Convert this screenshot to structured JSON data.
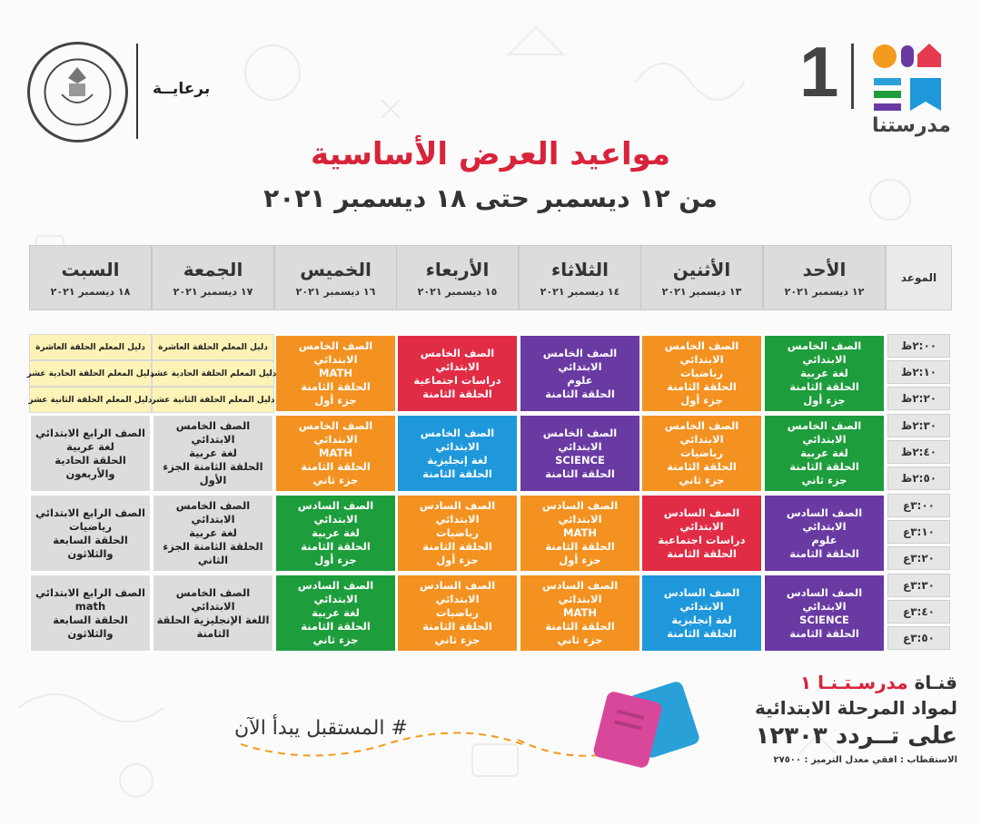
{
  "sponsor_label": "برعايــة",
  "ministry_logo_text": "MINISTRY OF EDUCATION AND TECHNICAL EDUCATION",
  "brand": {
    "number": "1",
    "name": "مدرستنا"
  },
  "title": "مواعيد العرض الأساسية",
  "subtitle": "من ١٢ ديسمبر حتى ١٨ ديسمبر ٢٠٢١",
  "time_header": "الموعد",
  "days": [
    {
      "name": "الأحد",
      "date": "١٢ ديسمبر ٢٠٢١"
    },
    {
      "name": "الأثنين",
      "date": "١٣ ديسمبر ٢٠٢١"
    },
    {
      "name": "الثلاثاء",
      "date": "١٤ ديسمبر ٢٠٢١"
    },
    {
      "name": "الأربعاء",
      "date": "١٥ ديسمبر ٢٠٢١"
    },
    {
      "name": "الخميس",
      "date": "١٦ ديسمبر ٢٠٢١"
    },
    {
      "name": "الجمعة",
      "date": "١٧ ديسمبر ٢٠٢١"
    },
    {
      "name": "السبت",
      "date": "١٨ ديسمبر ٢٠٢١"
    }
  ],
  "times": [
    "٢:٠٠ظ",
    "٢:١٠ظ",
    "٢:٢٠ظ",
    "٢:٣٠ظ",
    "٢:٤٠ظ",
    "٢:٥٠ظ",
    "٣:٠٠ع",
    "٣:١٠ع",
    "٣:٢٠ع",
    "٣:٣٠ع",
    "٣:٤٠ع",
    "٣:٥٠ع"
  ],
  "cells": [
    {
      "text": [
        "الصف الخامس الابتدائي",
        "لغة عربية",
        "الحلقة الثامنة",
        "جزء أول"
      ],
      "color": "#1e9d3c"
    },
    {
      "text": [
        "الصف الخامس الابتدائي",
        "رياضيات",
        "الحلقة الثامنة",
        "جزء أول"
      ],
      "color": "#f39220"
    },
    {
      "text": [
        "الصف الخامس الابتدائي",
        "علوم",
        "الحلقة الثامنة"
      ],
      "color": "#6a3aa3"
    },
    {
      "text": [
        "الصف الخامس الابتدائي",
        "دراسات اجتماعية",
        "الحلقة الثامنة"
      ],
      "color": "#e12c45"
    },
    {
      "text": [
        "الصف الخامس الابتدائي",
        "MATH",
        "الحلقة الثامنة",
        "جزء أول"
      ],
      "color": "#f39220"
    },
    {
      "text": [
        "الصف الخامس الابتدائي",
        "لغة عربية",
        "الحلقة الثامنة",
        "جزء ثاني"
      ],
      "color": "#1e9d3c"
    },
    {
      "text": [
        "الصف الخامس الابتدائي",
        "رياضيات",
        "الحلقة الثامنة",
        "جزء ثاني"
      ],
      "color": "#f39220"
    },
    {
      "text": [
        "الصف الخامس الابتدائي",
        "SCIENCE",
        "الحلقة الثامنة"
      ],
      "color": "#6a3aa3"
    },
    {
      "text": [
        "الصف الخامس الابتدائي",
        "لغة إنجليزية",
        "الحلقة الثامنة"
      ],
      "color": "#1e98db"
    },
    {
      "text": [
        "الصف الخامس الابتدائي",
        "MATH",
        "الحلقة الثامنة",
        "جزء ثاني"
      ],
      "color": "#f39220"
    },
    {
      "text": [
        "الصف الخامس الابتدائي",
        "لغة عربية",
        "الحلقة الثامنة   الجزء",
        "الأول"
      ],
      "color": "#dcdcdc"
    },
    {
      "text": [
        "الصف الرابع الابتدائي",
        "لغة عربية",
        "الحلقة الحادية والأربعون"
      ],
      "color": "#dcdcdc"
    },
    {
      "text": [
        "الصف السادس الابتدائي",
        "علوم",
        "الحلقة الثامنة"
      ],
      "color": "#6a3aa3"
    },
    {
      "text": [
        "الصف السادس الابتدائي",
        "دراسات اجتماعية",
        "الحلقة الثامنة"
      ],
      "color": "#e12c45"
    },
    {
      "text": [
        "الصف السادس الابتدائي",
        "MATH",
        "الحلقة الثامنة",
        "جزء أول"
      ],
      "color": "#f39220"
    },
    {
      "text": [
        "الصف السادس الابتدائي",
        "رياضيات",
        "الحلقة الثامنة",
        "جزء أول"
      ],
      "color": "#f39220"
    },
    {
      "text": [
        "الصف السادس الابتدائي",
        "لغة عربية",
        "الحلقة الثامنة",
        "جزء أول"
      ],
      "color": "#1e9d3c"
    },
    {
      "text": [
        "الصف الخامس الابتدائي",
        "لغة عربية",
        "الحلقة الثامنة   الجزء",
        "الثاني"
      ],
      "color": "#dcdcdc"
    },
    {
      "text": [
        "الصف الرابع الابتدائي",
        "رياضيات",
        "الحلقة السابعة والثلاثون"
      ],
      "color": "#dcdcdc"
    },
    {
      "text": [
        "الصف السادس الابتدائي",
        "SCIENCE",
        "الحلقة الثامنة"
      ],
      "color": "#6a3aa3"
    },
    {
      "text": [
        "الصف السادس الابتدائي",
        "لغة إنجليزية",
        "الحلقة الثامنة"
      ],
      "color": "#1e98db"
    },
    {
      "text": [
        "الصف السادس الابتدائي",
        "MATH",
        "الحلقة الثامنة",
        "جزء ثاني"
      ],
      "color": "#f39220"
    },
    {
      "text": [
        "الصف السادس الابتدائي",
        "رياضيات",
        "الحلقة الثامنة",
        "جزء ثاني"
      ],
      "color": "#f39220"
    },
    {
      "text": [
        "الصف السادس الابتدائي",
        "لغة عربية",
        "الحلقة الثامنة",
        "جزء ثاني"
      ],
      "color": "#1e9d3c"
    },
    {
      "text": [
        "الصف الخامس الابتدائي",
        "اللغة الإنجليزية   الحلقة",
        "الثامنة"
      ],
      "color": "#dcdcdc"
    },
    {
      "text": [
        "الصف الرابع الابتدائي",
        "math",
        "الحلقة السابعة والثلاثون"
      ],
      "color": "#dcdcdc"
    }
  ],
  "small_cells": [
    "دليل المعلم   الحلقة العاشرة",
    "دليل المعلم الحلقة العاشرة",
    "دليل المعلم   الحلقة الحادية عشر",
    "دليل المعلم الحلقة الحادية عشر",
    "دليل المعلم   الحلقة الثانية عشر",
    "دليل المعلم الحلقة الثانية عشر"
  ],
  "channel": {
    "line1_prefix": "قنـاة",
    "line1_name": "مدرسـتـنـا ١",
    "line2": "لمواد المرحلة الابتدائية",
    "line3": "على تــردد ١٢٣٠٣",
    "line4": "الاستقطاب : افقي معدل الترميز : ٢٧٥٠٠"
  },
  "hashtag": "# المستقبل يبدأ الآن",
  "colors": {
    "accent_red": "#d8243a",
    "green": "#1e9d3c",
    "orange": "#f39220",
    "purple": "#6a3aa3",
    "red": "#e12c45",
    "blue": "#1e98db",
    "gray": "#dcdcdc",
    "yellow": "#fdf3b6"
  }
}
